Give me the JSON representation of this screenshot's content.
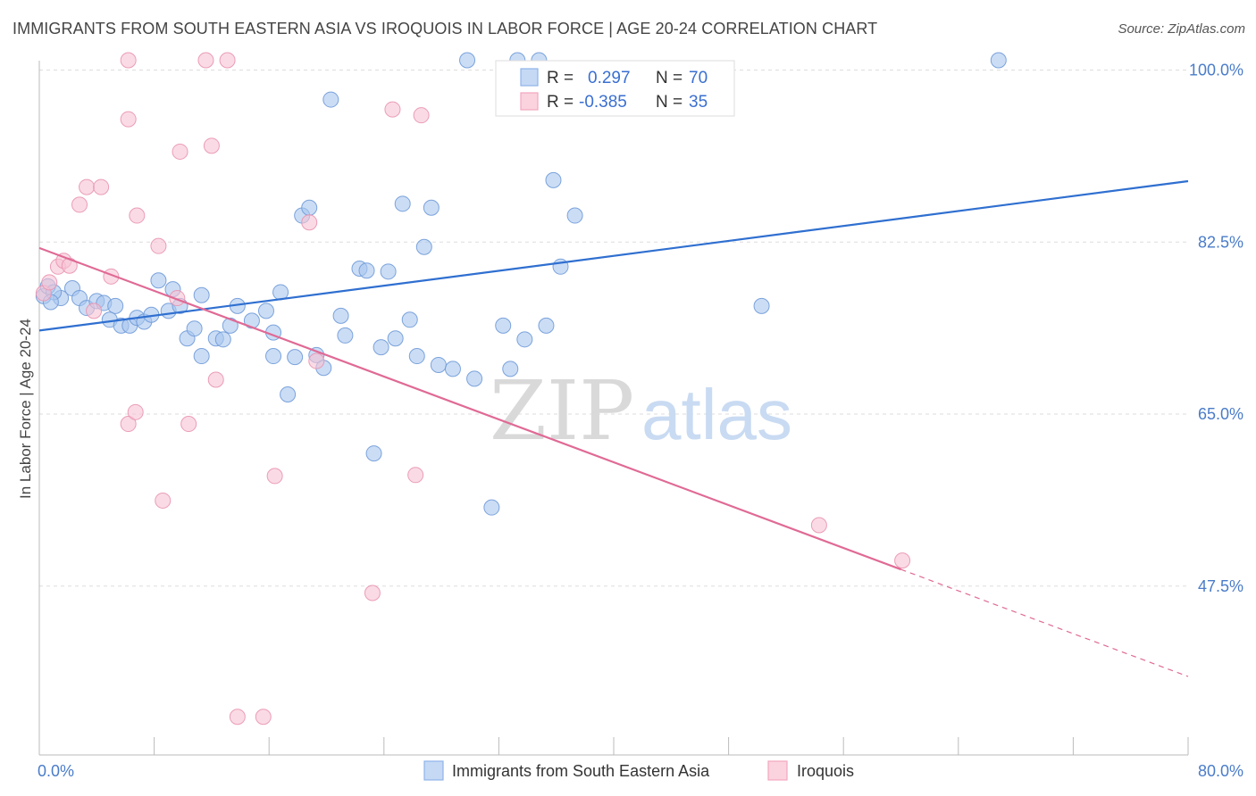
{
  "title": "IMMIGRANTS FROM SOUTH EASTERN ASIA VS IROQUOIS IN LABOR FORCE | AGE 20-24 CORRELATION CHART",
  "source": "Source: ZipAtlas.com",
  "watermark": {
    "zip": "ZIP",
    "atlas": "atlas"
  },
  "stats_box": {
    "rows": [
      {
        "r_label": "R =",
        "r_value": "0.297",
        "n_label": "N =",
        "n_value": "70",
        "color": "#8fb3e8"
      },
      {
        "r_label": "R =",
        "r_value": "-0.385",
        "n_label": "N =",
        "n_value": "35",
        "color": "#f2a7bf"
      }
    ]
  },
  "legend": {
    "items": [
      {
        "label": "Immigrants from South Eastern Asia",
        "color": "#8fb3e8"
      },
      {
        "label": "Iroquois",
        "color": "#f2a7bf"
      }
    ]
  },
  "colors": {
    "blue_point": "#a9c6ef",
    "blue_stroke": "#6f9ad8",
    "blue_line": "#2f6fd0",
    "pink_point": "#f7c3d3",
    "pink_stroke": "#e993b0",
    "pink_line": "#e06a95",
    "tick_text": "#4a7cc9",
    "grid": "#dddddd"
  },
  "chart_data": {
    "type": "scatter",
    "title": "IMMIGRANTS FROM SOUTH EASTERN ASIA VS IROQUOIS IN LABOR FORCE | AGE 20-24 CORRELATION CHART",
    "xlabel": "",
    "ylabel": "In Labor Force | Age 20-24",
    "xlim": [
      0,
      80
    ],
    "ylim": [
      31.5,
      101.5
    ],
    "x_tick_labels": [
      "0.0%",
      "80.0%"
    ],
    "y_tick_labels": [
      "100.0%",
      "82.5%",
      "65.0%",
      "47.5%"
    ],
    "y_ticks": [
      100.0,
      82.5,
      65.0,
      47.5
    ],
    "grid": true,
    "legend_position": "bottom",
    "series": [
      {
        "name": "Immigrants from South Eastern Asia",
        "r": 0.297,
        "n": 70,
        "trend": {
          "x": [
            0,
            80
          ],
          "y": [
            73.5,
            88.7
          ]
        },
        "points": [
          [
            0.3,
            77.0
          ],
          [
            0.6,
            78.0
          ],
          [
            1.5,
            76.8
          ],
          [
            2.3,
            77.8
          ],
          [
            2.8,
            76.8
          ],
          [
            3.3,
            75.8
          ],
          [
            4.0,
            76.5
          ],
          [
            4.5,
            76.3
          ],
          [
            5.3,
            76.0
          ],
          [
            4.9,
            74.6
          ],
          [
            5.7,
            74.0
          ],
          [
            6.3,
            74.0
          ],
          [
            6.8,
            74.8
          ],
          [
            7.3,
            74.4
          ],
          [
            7.8,
            75.1
          ],
          [
            8.3,
            78.6
          ],
          [
            9.3,
            77.7
          ],
          [
            9.0,
            75.5
          ],
          [
            9.8,
            76.0
          ],
          [
            11.3,
            77.1
          ],
          [
            10.3,
            72.7
          ],
          [
            10.8,
            73.7
          ],
          [
            11.3,
            70.9
          ],
          [
            12.3,
            72.7
          ],
          [
            12.8,
            72.6
          ],
          [
            13.3,
            74.0
          ],
          [
            13.8,
            76.0
          ],
          [
            14.8,
            74.5
          ],
          [
            15.8,
            75.5
          ],
          [
            16.3,
            73.3
          ],
          [
            16.3,
            70.9
          ],
          [
            16.8,
            77.4
          ],
          [
            17.3,
            67.0
          ],
          [
            17.8,
            70.8
          ],
          [
            18.3,
            85.2
          ],
          [
            18.8,
            86.0
          ],
          [
            19.3,
            71.0
          ],
          [
            19.8,
            69.7
          ],
          [
            20.3,
            97.0
          ],
          [
            21.0,
            75.0
          ],
          [
            21.3,
            73.0
          ],
          [
            22.3,
            79.8
          ],
          [
            22.8,
            79.6
          ],
          [
            23.3,
            61.0
          ],
          [
            23.8,
            71.8
          ],
          [
            24.3,
            79.5
          ],
          [
            24.8,
            72.7
          ],
          [
            25.8,
            74.6
          ],
          [
            25.3,
            86.4
          ],
          [
            26.3,
            70.9
          ],
          [
            26.8,
            82.0
          ],
          [
            27.3,
            86.0
          ],
          [
            27.8,
            70.0
          ],
          [
            28.8,
            69.6
          ],
          [
            30.3,
            68.6
          ],
          [
            29.8,
            101.0
          ],
          [
            31.5,
            55.5
          ],
          [
            32.3,
            74.0
          ],
          [
            32.8,
            69.6
          ],
          [
            33.3,
            101.0
          ],
          [
            33.8,
            72.6
          ],
          [
            34.8,
            101.0
          ],
          [
            35.3,
            74.0
          ],
          [
            35.8,
            88.8
          ],
          [
            36.3,
            80.0
          ],
          [
            37.3,
            85.2
          ],
          [
            50.3,
            76.0
          ],
          [
            66.8,
            101.0
          ],
          [
            1.0,
            77.4
          ],
          [
            0.8,
            76.4
          ]
        ]
      },
      {
        "name": "Iroquois",
        "r": -0.385,
        "n": 35,
        "trend": {
          "x": [
            0,
            60
          ],
          "y": [
            81.9,
            49.2
          ]
        },
        "trend_dashed": {
          "x": [
            60,
            80
          ],
          "y": [
            49.2,
            38.3
          ]
        },
        "points": [
          [
            0.3,
            77.3
          ],
          [
            0.7,
            78.4
          ],
          [
            1.3,
            80.0
          ],
          [
            1.7,
            80.6
          ],
          [
            2.1,
            80.1
          ],
          [
            2.8,
            86.3
          ],
          [
            3.3,
            88.1
          ],
          [
            4.3,
            88.1
          ],
          [
            3.8,
            75.5
          ],
          [
            5.0,
            79.0
          ],
          [
            6.2,
            64.0
          ],
          [
            6.7,
            65.2
          ],
          [
            6.2,
            101.0
          ],
          [
            6.2,
            95.0
          ],
          [
            6.8,
            85.2
          ],
          [
            8.3,
            82.1
          ],
          [
            8.6,
            56.2
          ],
          [
            9.6,
            76.8
          ],
          [
            9.8,
            91.7
          ],
          [
            10.4,
            64.0
          ],
          [
            11.6,
            101.0
          ],
          [
            12.0,
            92.3
          ],
          [
            12.3,
            68.5
          ],
          [
            13.1,
            101.0
          ],
          [
            13.8,
            34.2
          ],
          [
            15.6,
            34.2
          ],
          [
            16.4,
            58.7
          ],
          [
            18.8,
            84.5
          ],
          [
            19.3,
            70.4
          ],
          [
            23.2,
            46.8
          ],
          [
            24.6,
            96.0
          ],
          [
            26.2,
            58.8
          ],
          [
            26.6,
            95.4
          ],
          [
            54.3,
            53.7
          ],
          [
            60.1,
            50.1
          ]
        ]
      }
    ]
  }
}
